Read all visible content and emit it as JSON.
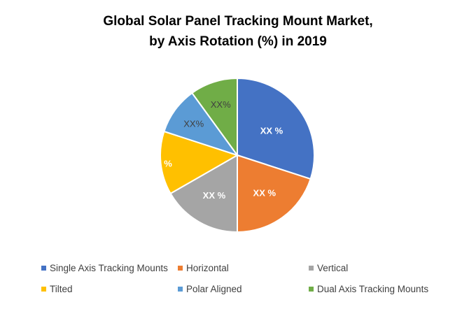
{
  "chart_data": {
    "type": "pie",
    "title_line1": "Global Solar Panel Tracking Mount Market,",
    "title_line2": "by Axis Rotation (%) in 2019",
    "categories": [
      "Single Axis Tracking Mounts",
      "Horizontal",
      "Vertical",
      "Tilted",
      "Polar Aligned",
      "Dual Axis Tracking Mounts"
    ],
    "values": [
      30,
      20,
      16.7,
      13.3,
      10,
      10
    ],
    "data_labels": [
      "XX %",
      "XX %",
      "XX %",
      "XX %",
      "XX%",
      "XX%"
    ],
    "colors": [
      "#4472C4",
      "#ED7D31",
      "#A5A5A5",
      "#FFC000",
      "#5B9BD5",
      "#70AD47"
    ],
    "label_colors": [
      "#ffffff",
      "#ffffff",
      "#ffffff",
      "#ffffff",
      "#404040",
      "#404040"
    ],
    "legend_position": "bottom"
  }
}
